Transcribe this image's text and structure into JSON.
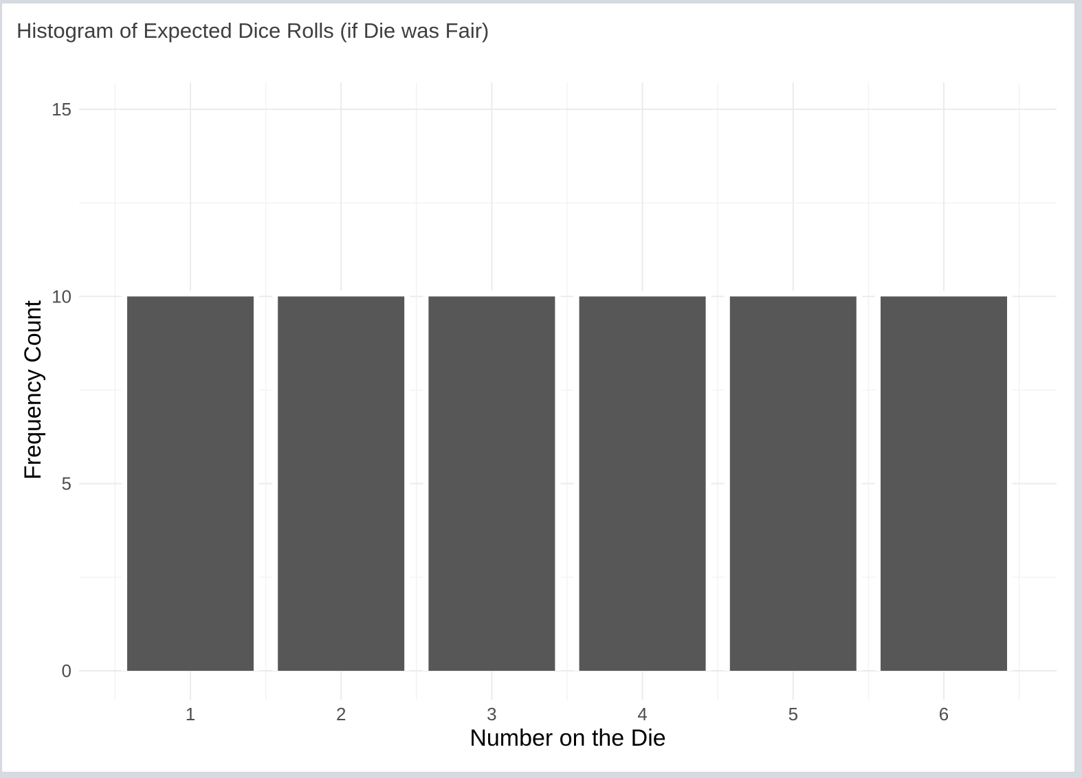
{
  "panel": {
    "title": "Histogram of Expected Dice Rolls (if Die was Fair)"
  },
  "colors": {
    "bar": "#575757",
    "grid_major": "#ebebeb",
    "grid_minor": "#f3f3f3",
    "background": "#ffffff"
  },
  "chart_data": {
    "type": "bar",
    "title": "Histogram of Expected Dice Rolls (if Die was Fair)",
    "xlabel": "Number on the Die",
    "ylabel": "Frequency Count",
    "categories": [
      "1",
      "2",
      "3",
      "4",
      "5",
      "6"
    ],
    "values": [
      10,
      10,
      10,
      10,
      10,
      10
    ],
    "ylim": [
      0,
      15
    ],
    "yticks": [
      0,
      5,
      10,
      15
    ],
    "grid": true,
    "legend": "none"
  }
}
